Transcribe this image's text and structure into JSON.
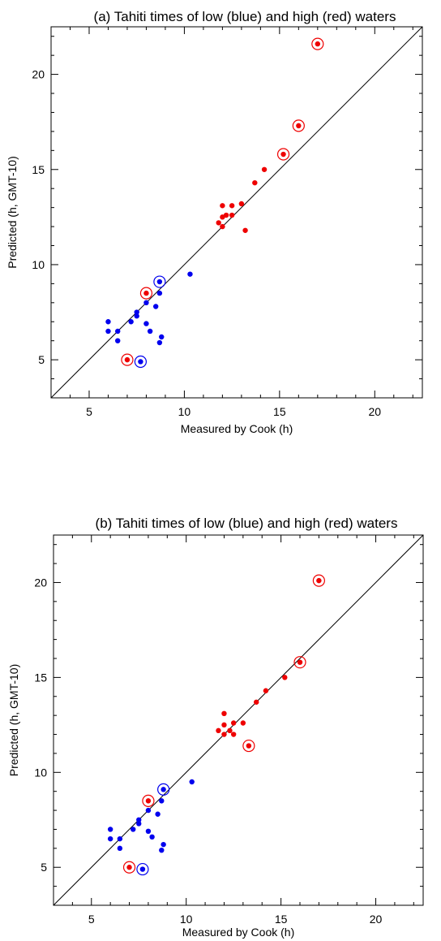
{
  "chart_data": [
    {
      "type": "scatter",
      "title": "(a) Tahiti times of low (blue) and high (red) waters",
      "xlabel": "Measured by Cook (h)",
      "ylabel": "Predicted (h, GMT-10)",
      "xlim": [
        3,
        22.5
      ],
      "ylim": [
        3,
        22.5
      ],
      "xticks": [
        5,
        10,
        15,
        20
      ],
      "yticks": [
        5,
        10,
        15,
        20
      ],
      "xtick_labels": [
        "5",
        "10",
        "15",
        "20"
      ],
      "ytick_labels": [
        "5",
        "10",
        "15",
        "20"
      ],
      "grid": false,
      "identity_line": true,
      "colors": {
        "low": "#0000ee",
        "high": "#ee0000",
        "axis": "#000000"
      },
      "series": [
        {
          "color": "#0000ee",
          "points": [
            [
              6.0,
              7.0
            ],
            [
              6.0,
              6.5
            ],
            [
              6.5,
              6.5
            ],
            [
              6.5,
              6.0
            ],
            [
              7.2,
              7.0
            ],
            [
              7.5,
              7.5
            ],
            [
              7.5,
              7.3
            ],
            [
              8.0,
              8.0
            ],
            [
              8.0,
              6.9
            ],
            [
              8.2,
              6.5
            ],
            [
              8.5,
              7.8
            ],
            [
              8.7,
              8.5
            ],
            [
              8.7,
              5.9
            ],
            [
              8.8,
              6.2
            ],
            [
              10.3,
              9.5
            ],
            [
              8.7,
              9.1
            ],
            [
              7.7,
              4.9
            ]
          ],
          "circled": [
            [
              8.7,
              9.1
            ],
            [
              7.7,
              4.9
            ]
          ]
        },
        {
          "color": "#ee0000",
          "points": [
            [
              11.8,
              12.2
            ],
            [
              12.0,
              13.1
            ],
            [
              12.0,
              12.0
            ],
            [
              12.0,
              12.5
            ],
            [
              12.2,
              12.6
            ],
            [
              12.5,
              13.1
            ],
            [
              12.5,
              12.6
            ],
            [
              13.0,
              13.2
            ],
            [
              13.2,
              11.8
            ],
            [
              13.7,
              14.3
            ],
            [
              14.2,
              15.0
            ],
            [
              15.2,
              15.8
            ],
            [
              16.0,
              17.3
            ],
            [
              17.0,
              21.6
            ],
            [
              8.0,
              8.5
            ],
            [
              7.0,
              5.0
            ]
          ],
          "circled": [
            [
              15.2,
              15.8
            ],
            [
              16.0,
              17.3
            ],
            [
              17.0,
              21.6
            ],
            [
              8.0,
              8.5
            ],
            [
              7.0,
              5.0
            ]
          ]
        }
      ]
    },
    {
      "type": "scatter",
      "title": "(b) Tahiti times of low (blue) and high (red) waters",
      "xlabel": "Measured by Cook (h)",
      "ylabel": "Predicted (h, GMT-10)",
      "xlim": [
        3,
        22.5
      ],
      "ylim": [
        3,
        22.5
      ],
      "xticks": [
        5,
        10,
        15,
        20
      ],
      "yticks": [
        5,
        10,
        15,
        20
      ],
      "xtick_labels": [
        "5",
        "10",
        "15",
        "20"
      ],
      "ytick_labels": [
        "5",
        "10",
        "15",
        "20"
      ],
      "grid": false,
      "identity_line": true,
      "colors": {
        "low": "#0000ee",
        "high": "#ee0000",
        "axis": "#000000"
      },
      "series": [
        {
          "color": "#0000ee",
          "points": [
            [
              6.0,
              7.0
            ],
            [
              6.0,
              6.5
            ],
            [
              6.5,
              6.5
            ],
            [
              6.5,
              6.0
            ],
            [
              7.2,
              7.0
            ],
            [
              7.5,
              7.5
            ],
            [
              7.5,
              7.3
            ],
            [
              8.0,
              8.0
            ],
            [
              8.0,
              6.9
            ],
            [
              8.2,
              6.6
            ],
            [
              8.5,
              7.8
            ],
            [
              8.7,
              8.5
            ],
            [
              8.7,
              5.9
            ],
            [
              8.8,
              6.2
            ],
            [
              10.3,
              9.5
            ],
            [
              8.8,
              9.1
            ],
            [
              7.7,
              4.9
            ]
          ],
          "circled": [
            [
              8.8,
              9.1
            ],
            [
              7.7,
              4.9
            ]
          ]
        },
        {
          "color": "#ee0000",
          "points": [
            [
              11.7,
              12.2
            ],
            [
              12.0,
              13.1
            ],
            [
              12.0,
              12.5
            ],
            [
              12.0,
              12.0
            ],
            [
              12.3,
              12.2
            ],
            [
              12.5,
              12.6
            ],
            [
              12.5,
              12.0
            ],
            [
              13.0,
              12.6
            ],
            [
              13.7,
              13.7
            ],
            [
              14.2,
              14.3
            ],
            [
              15.2,
              15.0
            ],
            [
              16.0,
              15.8
            ],
            [
              17.0,
              20.1
            ],
            [
              13.3,
              11.4
            ],
            [
              8.0,
              8.5
            ],
            [
              7.0,
              5.0
            ]
          ],
          "circled": [
            [
              16.0,
              15.8
            ],
            [
              17.0,
              20.1
            ],
            [
              13.3,
              11.4
            ],
            [
              8.0,
              8.5
            ],
            [
              7.0,
              5.0
            ]
          ]
        }
      ]
    }
  ]
}
